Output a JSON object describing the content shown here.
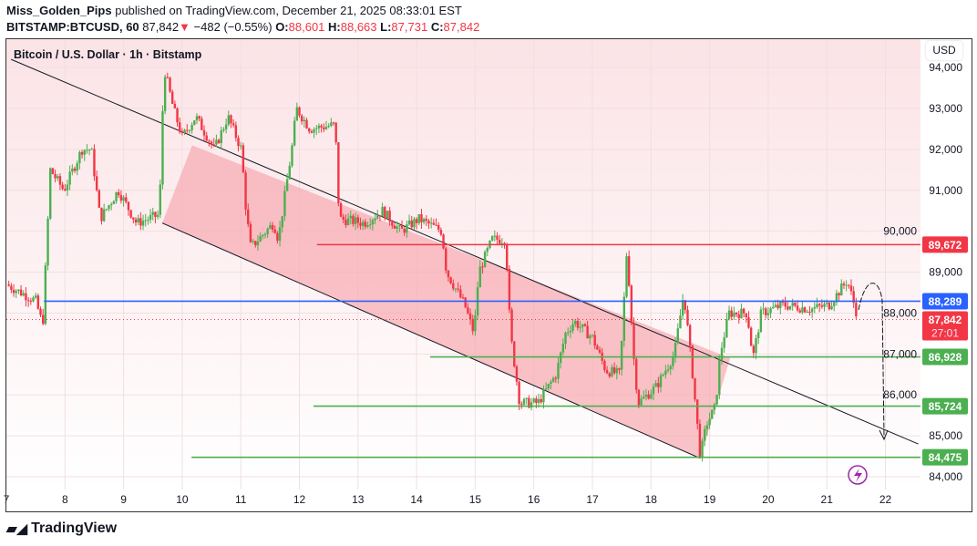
{
  "header": {
    "author": "Miss_Golden_Pips",
    "published": "published on TradingView.com, December 21, 2025 08:33:01 EST",
    "symbol": "BITSTAMP:BTCUSD, 60",
    "last": "87,842",
    "arrow": "▼",
    "change": "−482 (−0.55%)",
    "o_label": "O:",
    "o": "88,601",
    "h_label": "H:",
    "h": "88,663",
    "l_label": "L:",
    "l": "87,731",
    "c_label": "C:",
    "c": "87,842"
  },
  "legend": "Bitcoin / U.S. Dollar · 1h · Bitstamp",
  "currency": "USD",
  "footer": "TradingView",
  "colors": {
    "up": "#4caf50",
    "down": "#f23645",
    "blue": "#2962ff",
    "channel": "#f7a9b0",
    "bg": "#fce4e8"
  },
  "chart_data": {
    "type": "candlestick",
    "title": "Bitcoin / U.S. Dollar · 1h · Bitstamp",
    "ylim": [
      83800,
      94600
    ],
    "yticks": [
      84000,
      85000,
      86000,
      87000,
      88000,
      89000,
      90000,
      91000,
      92000,
      93000,
      94000
    ],
    "ytick_labels": [
      "84,000",
      "85,000",
      "86,000",
      "87,000",
      "88,000",
      "89,000",
      "90,000",
      "91,000",
      "92,000",
      "93,000",
      "94,000"
    ],
    "xticks": [
      7,
      8,
      9,
      10,
      11,
      12,
      13,
      14,
      15,
      16,
      17,
      18,
      19,
      20,
      21,
      22
    ],
    "xtick_labels": [
      "7",
      "8",
      "9",
      "10",
      "11",
      "12",
      "13",
      "14",
      "15",
      "16",
      "17",
      "18",
      "19",
      "20",
      "21",
      "22"
    ],
    "xlim": [
      7,
      22.6
    ],
    "price_path": [
      [
        7.0,
        88700
      ],
      [
        7.5,
        88300
      ],
      [
        7.62,
        87700
      ],
      [
        7.75,
        91500
      ],
      [
        7.98,
        91000
      ],
      [
        8.29,
        92000
      ],
      [
        8.45,
        92000
      ],
      [
        8.6,
        90300
      ],
      [
        8.91,
        91000
      ],
      [
        9.22,
        90200
      ],
      [
        9.61,
        90400
      ],
      [
        9.69,
        94000
      ],
      [
        9.85,
        93000
      ],
      [
        10.0,
        92300
      ],
      [
        10.23,
        92800
      ],
      [
        10.55,
        92000
      ],
      [
        10.78,
        92800
      ],
      [
        11.01,
        92000
      ],
      [
        11.09,
        90500
      ],
      [
        11.17,
        89600
      ],
      [
        11.56,
        90200
      ],
      [
        11.64,
        89800
      ],
      [
        11.87,
        92000
      ],
      [
        11.95,
        93000
      ],
      [
        12.18,
        92500
      ],
      [
        12.61,
        92600
      ],
      [
        12.68,
        90300
      ],
      [
        13.11,
        90200
      ],
      [
        13.42,
        90500
      ],
      [
        13.73,
        90000
      ],
      [
        14.04,
        90300
      ],
      [
        14.43,
        90000
      ],
      [
        14.51,
        89000
      ],
      [
        14.82,
        88200
      ],
      [
        14.98,
        87500
      ],
      [
        15.06,
        89000
      ],
      [
        15.29,
        89800
      ],
      [
        15.52,
        89800
      ],
      [
        15.6,
        87500
      ],
      [
        15.76,
        85800
      ],
      [
        16.07,
        85800
      ],
      [
        16.38,
        86500
      ],
      [
        16.54,
        87500
      ],
      [
        16.69,
        87800
      ],
      [
        17.0,
        87400
      ],
      [
        17.23,
        86600
      ],
      [
        17.47,
        86500
      ],
      [
        17.59,
        89600
      ],
      [
        17.7,
        87000
      ],
      [
        17.78,
        85800
      ],
      [
        18.09,
        86200
      ],
      [
        18.4,
        87000
      ],
      [
        18.56,
        88500
      ],
      [
        18.71,
        86500
      ],
      [
        18.84,
        84500
      ],
      [
        18.95,
        85300
      ],
      [
        19.1,
        85700
      ],
      [
        19.18,
        87000
      ],
      [
        19.33,
        88000
      ],
      [
        19.64,
        88000
      ],
      [
        19.74,
        86900
      ],
      [
        19.88,
        88000
      ],
      [
        20.26,
        88200
      ],
      [
        20.73,
        88100
      ],
      [
        21.04,
        88200
      ],
      [
        21.35,
        88800
      ],
      [
        21.54,
        87842
      ]
    ],
    "horizontal_levels": [
      {
        "price": 89672,
        "label": "89,672",
        "color": "#f23645",
        "from": 12.3
      },
      {
        "price": 88289,
        "label": "88,289",
        "color": "#2962ff",
        "from": 7.64
      },
      {
        "price": 86928,
        "label": "86,928",
        "color": "#4caf50",
        "from": 14.23
      },
      {
        "price": 85724,
        "label": "85,724",
        "color": "#4caf50",
        "from": 12.24
      },
      {
        "price": 84475,
        "label": "84,475",
        "color": "#4caf50",
        "from": 10.16
      }
    ],
    "last_price": {
      "price": 87842,
      "label": "87,842",
      "countdown": "27:01"
    },
    "channel": {
      "upper": [
        [
          7.08,
          94200
        ],
        [
          22.56,
          84800
        ]
      ],
      "lower": [
        [
          9.66,
          90200
        ],
        [
          18.84,
          84450
        ]
      ]
    }
  }
}
